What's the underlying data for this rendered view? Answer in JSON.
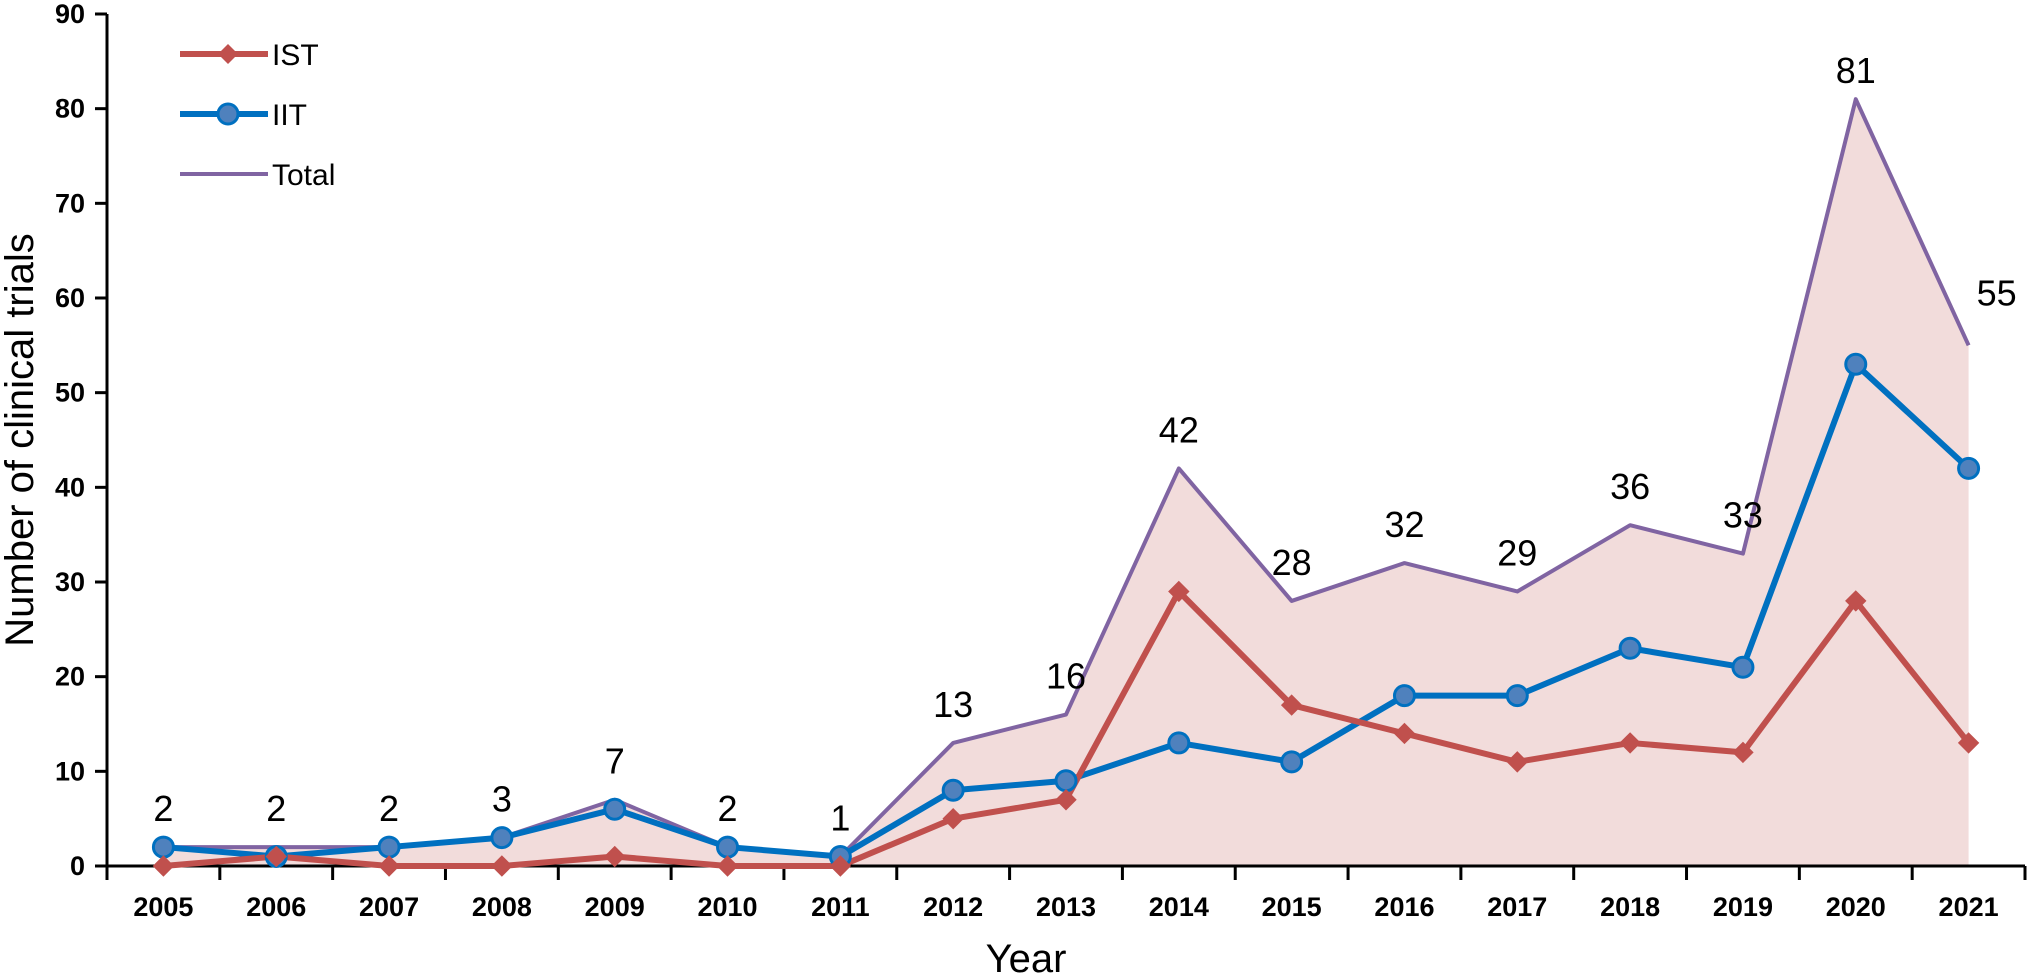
{
  "chart_data": {
    "type": "line",
    "xlabel": "Year",
    "ylabel": "Number of clinical trials",
    "ylim": [
      0,
      90
    ],
    "yticks": [
      0,
      10,
      20,
      30,
      40,
      50,
      60,
      70,
      80,
      90
    ],
    "categories": [
      "2005",
      "2006",
      "2007",
      "2008",
      "2009",
      "2010",
      "2011",
      "2012",
      "2013",
      "2014",
      "2015",
      "2016",
      "2017",
      "2018",
      "2019",
      "2020",
      "2021"
    ],
    "series": [
      {
        "name": "IST",
        "color": "#C0504D",
        "marker": "diamond",
        "values": [
          0,
          1,
          0,
          0,
          1,
          0,
          0,
          5,
          7,
          29,
          17,
          14,
          11,
          13,
          12,
          28,
          13
        ]
      },
      {
        "name": "IIT",
        "color": "#0070C0",
        "marker": "circle",
        "values": [
          2,
          1,
          2,
          3,
          6,
          2,
          1,
          8,
          9,
          13,
          11,
          18,
          18,
          23,
          21,
          53,
          42
        ]
      },
      {
        "name": "Total",
        "color": "#8064A2",
        "marker": "none",
        "fill": "#F2DCDB",
        "values": [
          2,
          2,
          2,
          3,
          7,
          2,
          1,
          13,
          16,
          42,
          28,
          32,
          29,
          36,
          33,
          81,
          55
        ],
        "data_labels": [
          "2",
          "2",
          "2",
          "3",
          "7",
          "2",
          "1",
          "13",
          "16",
          "42",
          "28",
          "32",
          "29",
          "36",
          "33",
          "81",
          "55"
        ]
      }
    ],
    "legend_position": "top-left",
    "grid": false
  }
}
